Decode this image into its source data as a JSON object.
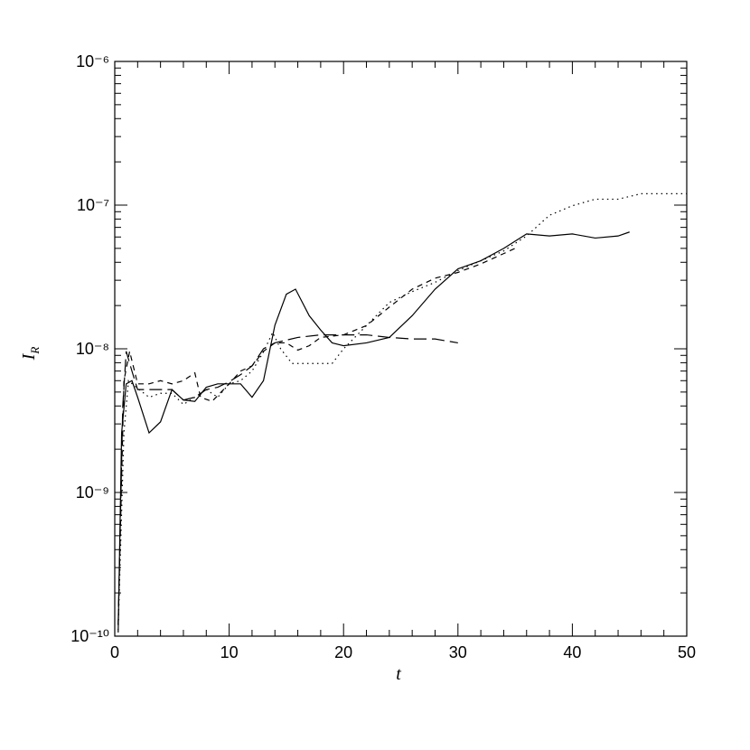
{
  "chart_data": {
    "type": "line",
    "x_label": "t",
    "y_label": "I",
    "y_label_sub": "R",
    "xlim": [
      0,
      50
    ],
    "xticks": [
      0,
      10,
      20,
      30,
      40,
      50
    ],
    "ylim": [
      1e-10,
      1e-06
    ],
    "log_y": true,
    "yticks": [
      {
        "value": 1e-10,
        "label": "10⁻¹⁰"
      },
      {
        "value": 1e-09,
        "label": "10⁻⁹"
      },
      {
        "value": 1e-08,
        "label": "10⁻⁸"
      },
      {
        "value": 1e-07,
        "label": "10⁻⁷"
      },
      {
        "value": 1e-06,
        "label": "10⁻⁶"
      }
    ],
    "minor_ticks": true,
    "series": [
      {
        "color": "#000000",
        "dash": "solid",
        "x": [
          0.3,
          0.6,
          1,
          1.5,
          2,
          3,
          4,
          5,
          6,
          7,
          8,
          9,
          10,
          11,
          12,
          13,
          14,
          15,
          15.8,
          17,
          18,
          19,
          20,
          22,
          24,
          26,
          28,
          30,
          32,
          34,
          36,
          38,
          40,
          42,
          44,
          45
        ],
        "values": [
          1.06e-10,
          2.6e-09,
          5.7e-09,
          6e-09,
          4.6e-09,
          2.6e-09,
          3.1e-09,
          5.2e-09,
          4.4e-09,
          4.3e-09,
          5.4e-09,
          5.7e-09,
          5.7e-09,
          5.7e-09,
          4.6e-09,
          6e-09,
          1.46e-08,
          2.4e-08,
          2.6e-08,
          1.7e-08,
          1.35e-08,
          1.1e-08,
          1.05e-08,
          1.1e-08,
          1.2e-08,
          1.7e-08,
          2.6e-08,
          3.6e-08,
          4.1e-08,
          5e-08,
          6.3e-08,
          6.1e-08,
          6.3e-08,
          5.9e-08,
          6.1e-08,
          6.5e-08
        ]
      },
      {
        "color": "#000000",
        "dash": "dotted",
        "x": [
          0.3,
          0.8,
          1.2,
          2,
          3,
          4,
          5,
          6,
          7,
          8,
          9,
          10,
          11,
          12,
          13,
          13.8,
          14.5,
          15.5,
          17,
          19,
          20,
          22,
          24,
          26,
          28,
          30,
          32,
          34,
          36,
          38,
          40,
          42,
          44,
          46,
          48,
          50
        ],
        "values": [
          1.1e-10,
          2.6e-09,
          6e-09,
          5.3e-09,
          4.6e-09,
          4.9e-09,
          4.9e-09,
          4.1e-09,
          4.6e-09,
          5.2e-09,
          4.6e-09,
          5.7e-09,
          6e-09,
          7e-09,
          9.5e-09,
          1.3e-08,
          1e-08,
          7.9e-09,
          7.9e-09,
          7.9e-09,
          1e-08,
          1.45e-08,
          2.1e-08,
          2.5e-08,
          2.9e-08,
          3.5e-08,
          4.1e-08,
          4.8e-08,
          6.1e-08,
          8.5e-08,
          9.9e-08,
          1.1e-07,
          1.1e-07,
          1.2e-07,
          1.2e-07,
          1.2e-07
        ]
      },
      {
        "color": "#000000",
        "dash": "long-dashed",
        "x": [
          0.3,
          0.7,
          1,
          1.5,
          2,
          3,
          4,
          5,
          6,
          7,
          8,
          9,
          10,
          11,
          12,
          13,
          14,
          16,
          18,
          20,
          22,
          24,
          26,
          28,
          30
        ],
        "values": [
          1.2e-10,
          4e-09,
          9.6e-09,
          7e-09,
          5.2e-09,
          5.2e-09,
          5.2e-09,
          5.2e-09,
          4.4e-09,
          4.6e-09,
          5.2e-09,
          5.4e-09,
          5.9e-09,
          6.6e-09,
          7.6e-09,
          1e-08,
          1.1e-08,
          1.2e-08,
          1.25e-08,
          1.25e-08,
          1.25e-08,
          1.2e-08,
          1.17e-08,
          1.17e-08,
          1.1e-08
        ]
      },
      {
        "color": "#000000",
        "dash": "short-dashed",
        "x": [
          0.3,
          0.8,
          1.3,
          2,
          3,
          4,
          5,
          6,
          7,
          7.5,
          8.5,
          10,
          11,
          12,
          13,
          14,
          15,
          16,
          17,
          18,
          20,
          22,
          24,
          26,
          28,
          30,
          32,
          34,
          35
        ],
        "values": [
          1.2e-10,
          6e-09,
          9.6e-09,
          5.7e-09,
          5.7e-09,
          6e-09,
          5.7e-09,
          6e-09,
          6.8e-09,
          4.6e-09,
          4.3e-09,
          5.7e-09,
          7e-09,
          7.6e-09,
          9.6e-09,
          1.1e-08,
          1.1e-08,
          9.8e-09,
          1.05e-08,
          1.2e-08,
          1.25e-08,
          1.45e-08,
          1.95e-08,
          2.6e-08,
          3.1e-08,
          3.4e-08,
          3.9e-08,
          4.6e-08,
          5e-08
        ]
      }
    ]
  }
}
